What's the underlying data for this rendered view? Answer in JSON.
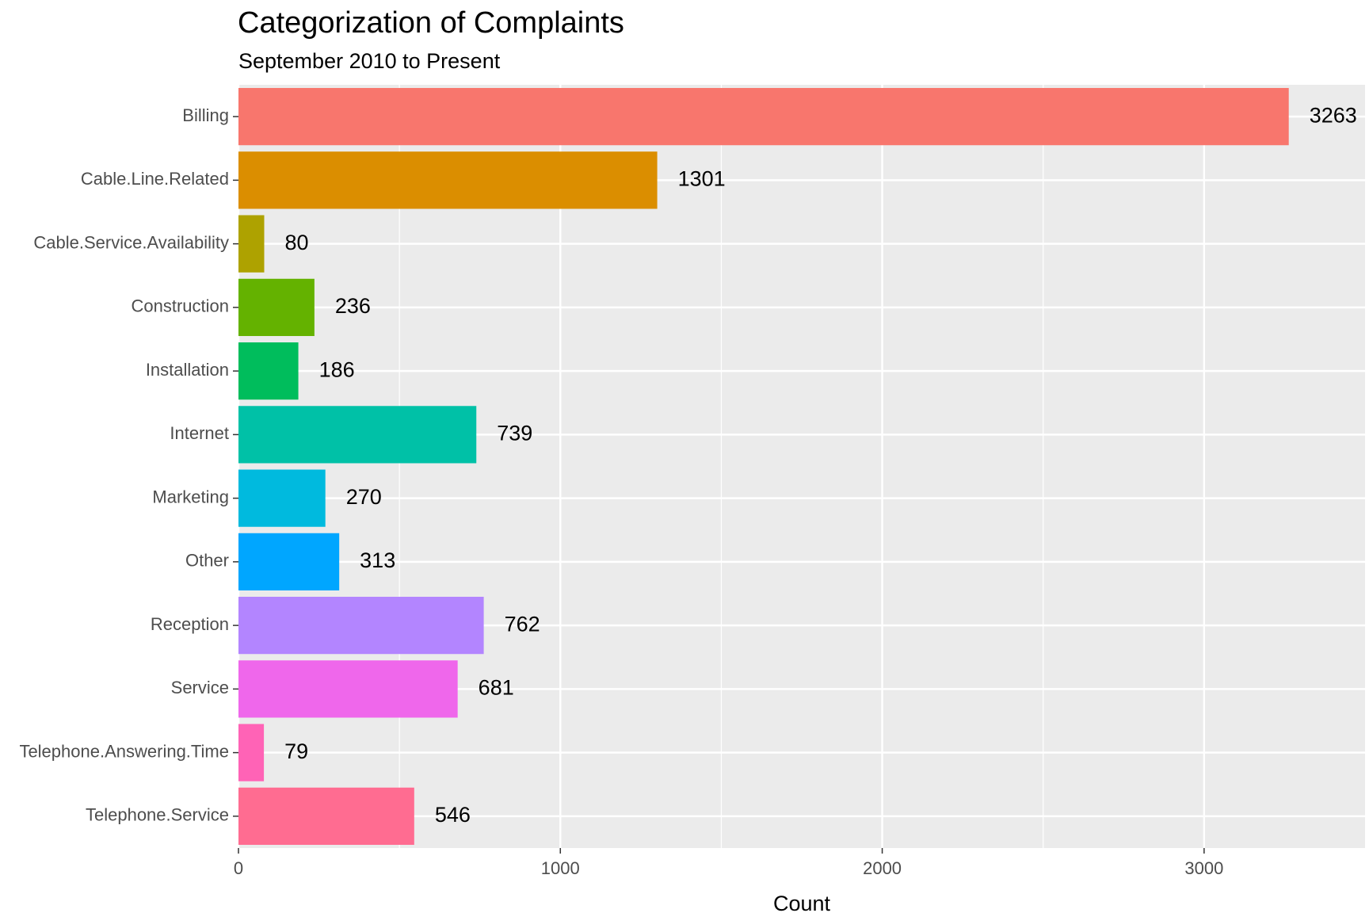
{
  "chart_data": {
    "type": "bar",
    "orientation": "horizontal",
    "title": "Categorization of Complaints",
    "subtitle": "September 2010 to Present",
    "xlabel": "Count",
    "ylabel": "",
    "categories": [
      "Billing",
      "Cable.Line.Related",
      "Cable.Service.Availability",
      "Construction",
      "Installation",
      "Internet",
      "Marketing",
      "Other",
      "Reception",
      "Service",
      "Telephone.Answering.Time",
      "Telephone.Service"
    ],
    "values": [
      3263,
      1301,
      80,
      236,
      186,
      739,
      270,
      313,
      762,
      681,
      79,
      546
    ],
    "value_labels": [
      "3263",
      "1301",
      "80",
      "236",
      "186",
      "739",
      "270",
      "313",
      "762",
      "681",
      "79",
      "546"
    ],
    "colors": [
      "#F8766D",
      "#DB8E00",
      "#AEA200",
      "#64B200",
      "#00BD5C",
      "#00C1A7",
      "#00BADE",
      "#00A6FF",
      "#B385FF",
      "#EF67EB",
      "#FF63B6",
      "#FF6C91"
    ],
    "xlim": [
      0,
      3500
    ],
    "xticks": [
      0,
      1000,
      2000,
      3000
    ],
    "xtick_labels": [
      "0",
      "1000",
      "2000",
      "3000"
    ],
    "grid": true,
    "legend": "none",
    "panel_background": "#EBEBEB",
    "grid_color": "#FFFFFF"
  }
}
